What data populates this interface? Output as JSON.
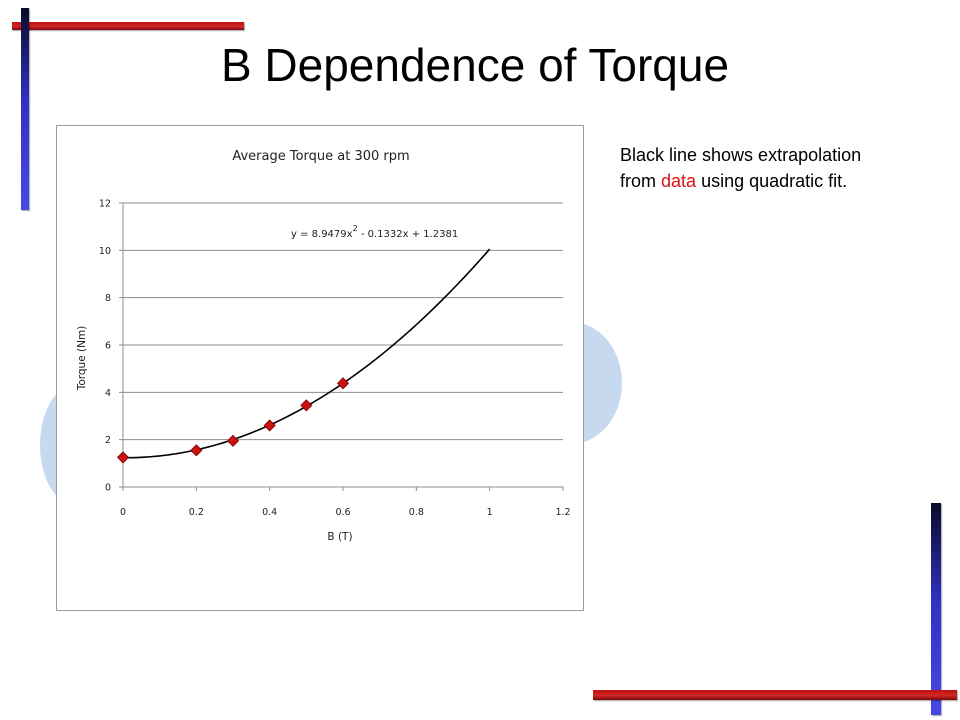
{
  "slide": {
    "title": "B Dependence of Torque",
    "note_before": "Black line shows extrapolation from ",
    "note_highlight": "data",
    "note_after": " using quadratic fit.",
    "colors": {
      "highlight": "#e01010",
      "accent_blue": "#3838d8",
      "accent_red": "#c81818"
    }
  },
  "chart_data": {
    "type": "scatter",
    "title": "Average Torque at 300 rpm",
    "xlabel": "B (T)",
    "ylabel": "Torque (Nm)",
    "xlim": [
      0,
      1.2
    ],
    "ylim": [
      0,
      12
    ],
    "xticks": [
      "0",
      "0.2",
      "0.4",
      "0.6",
      "0.8",
      "1",
      "1.2"
    ],
    "yticks": [
      "0",
      "2",
      "4",
      "6",
      "8",
      "10",
      "12"
    ],
    "grid": "horizontal",
    "series": [
      {
        "x": [
          0,
          0.2,
          0.3,
          0.4,
          0.5,
          0.6
        ],
        "y": [
          1.25,
          1.55,
          1.95,
          2.6,
          3.45,
          4.38
        ],
        "color": "#cc1111"
      }
    ],
    "fit": {
      "equation_prefix": "y = 8.9479x",
      "equation_power": "2",
      "equation_suffix": " - 0.1332x + 1.2381",
      "coefficients": [
        8.9479,
        -0.1332,
        1.2381
      ],
      "x_range": [
        0,
        1.0
      ],
      "color": "#000000"
    }
  }
}
